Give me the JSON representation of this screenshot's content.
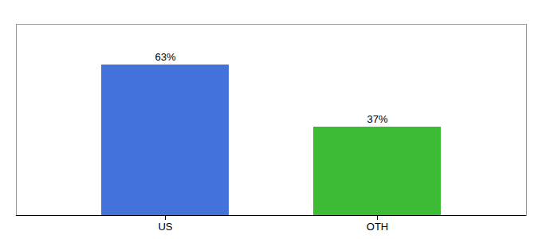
{
  "chart_data": {
    "type": "bar",
    "categories": [
      "US",
      "OTH"
    ],
    "values": [
      63,
      37
    ],
    "value_labels": [
      "63%",
      "37%"
    ],
    "data_labels": true,
    "colors": [
      "#4472db",
      "#3dbb35"
    ],
    "ylim": [
      0,
      80
    ],
    "tick_labels": "x"
  }
}
